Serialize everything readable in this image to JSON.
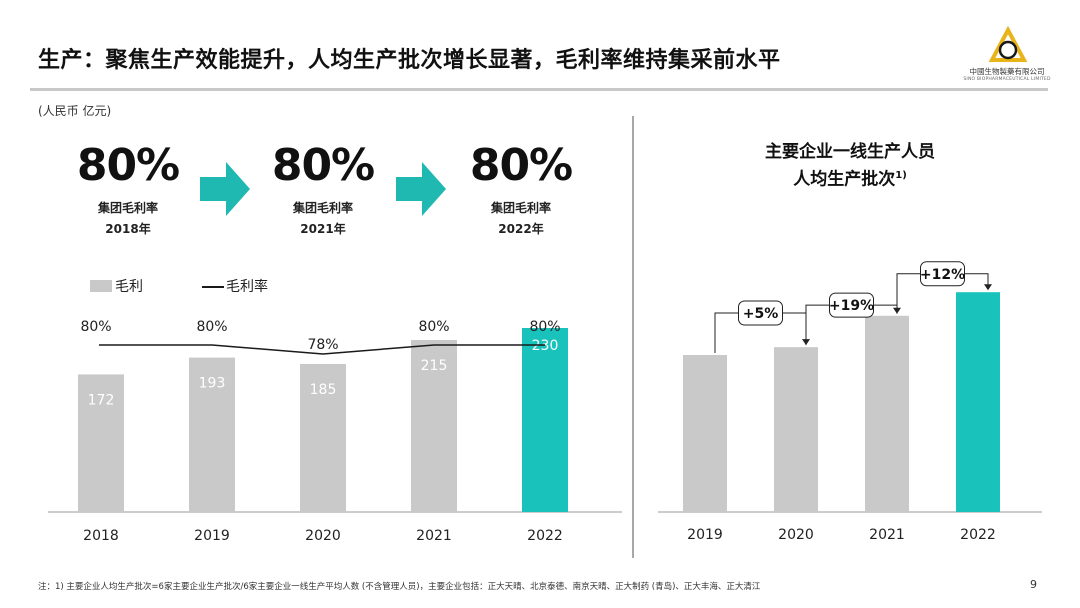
{
  "header": {
    "title": "生产：聚焦生产效能提升，人均生产批次增长显著，毛利率维持集采前水平",
    "logo_name": "中國生物製藥有限公司",
    "logo_sub": "SINO BIOPHARMACEUTICAL LIMITED"
  },
  "unit_label": "(人民币 亿元)",
  "kpis": [
    {
      "value": "80%",
      "label": "集团毛利率",
      "year": "2018年"
    },
    {
      "value": "80%",
      "label": "集团毛利率",
      "year": "2021年"
    },
    {
      "value": "80%",
      "label": "集团毛利率",
      "year": "2022年"
    }
  ],
  "legend": {
    "bar": "毛利",
    "line": "毛利率"
  },
  "colors": {
    "gray": "#c9c9c9",
    "teal": "#19c2bb",
    "arrow": "#1fb9b1",
    "line": "#1a1a1a"
  },
  "icons": {
    "logo": "triangle-circle-logo-icon",
    "arrow": "right-arrow-icon"
  },
  "chart_data": [
    {
      "type": "bar",
      "categories": [
        "2018",
        "2019",
        "2020",
        "2021",
        "2022"
      ],
      "series": [
        {
          "name": "毛利",
          "values": [
            172,
            193,
            185,
            215,
            230
          ]
        },
        {
          "name": "毛利率",
          "type": "line",
          "values": [
            80,
            80,
            78,
            80,
            80
          ],
          "labels": [
            "80%",
            "80%",
            "78%",
            "80%",
            "80%"
          ]
        }
      ],
      "highlight_index": 4,
      "ylim": [
        0,
        250
      ]
    },
    {
      "type": "bar",
      "title_lines": [
        "主要企业一线生产人员",
        "人均生产批次"
      ],
      "title_sup": "1)",
      "categories": [
        "2019",
        "2020",
        "2021",
        "2022"
      ],
      "values": [
        100,
        105,
        125,
        140
      ],
      "highlight_index": 3,
      "growth_annotations": [
        "+5%",
        "+19%",
        "+12%"
      ],
      "ylim": [
        0,
        160
      ]
    }
  ],
  "footnote": "注：1) 主要企业人均生产批次=6家主要企业生产批次/6家主要企业一线生产平均人数 (不含管理人员)，主要企业包括：正大天晴、北京泰德、南京天晴、正大制药 (青岛)、正大丰海、正大清江",
  "page_number": "9"
}
